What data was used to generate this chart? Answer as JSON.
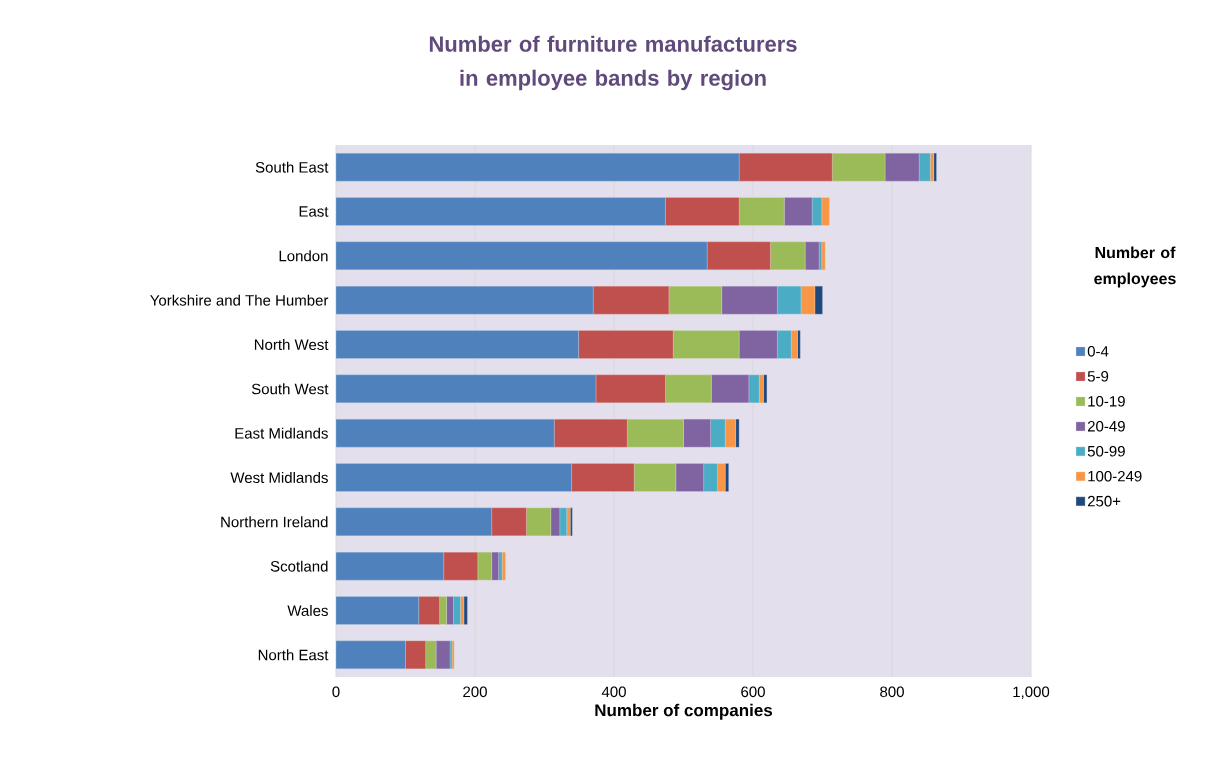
{
  "chart_data": {
    "type": "bar",
    "orientation": "horizontal",
    "stacked": true,
    "title": "Number of furniture manufacturers in employee bands by region",
    "xlabel": "Number of companies",
    "legend_title": "Number of employees",
    "categories": [
      "South East",
      "East",
      "London",
      "Yorkshire and The Humber",
      "North West",
      "South West",
      "East Midlands",
      "West Midlands",
      "Northern Ireland",
      "Scotland",
      "Wales",
      "North East"
    ],
    "series": [
      {
        "name": "0-4",
        "color": "#4f81bd",
        "values": [
          580,
          474,
          534,
          370,
          349,
          374,
          314,
          339,
          224,
          155,
          119,
          100
        ]
      },
      {
        "name": "5-9",
        "color": "#c0504d",
        "values": [
          134,
          106,
          91,
          109,
          136,
          100,
          105,
          90,
          50,
          49,
          30,
          29
        ]
      },
      {
        "name": "10-19",
        "color": "#9bbb59",
        "values": [
          76,
          65,
          50,
          76,
          95,
          66,
          81,
          60,
          35,
          20,
          10,
          15
        ]
      },
      {
        "name": "20-49",
        "color": "#8064a2",
        "values": [
          49,
          40,
          20,
          80,
          55,
          54,
          39,
          40,
          13,
          10,
          10,
          20
        ]
      },
      {
        "name": "50-99",
        "color": "#4bacc6",
        "values": [
          16,
          14,
          4,
          34,
          20,
          15,
          21,
          20,
          10,
          5,
          10,
          3
        ]
      },
      {
        "name": "100-249",
        "color": "#f79646",
        "values": [
          5,
          11,
          5,
          20,
          9,
          6,
          15,
          11,
          5,
          5,
          5,
          3
        ]
      },
      {
        "name": "250+",
        "color": "#1f497d",
        "values": [
          4,
          0,
          0,
          11,
          4,
          5,
          5,
          5,
          3,
          0,
          5,
          0
        ]
      }
    ],
    "xlim": [
      0,
      1000
    ],
    "xticks": [
      0,
      200,
      400,
      600,
      800,
      {
        "value": 1000,
        "label": "1,000"
      }
    ],
    "grid": "x",
    "legend": "right"
  }
}
